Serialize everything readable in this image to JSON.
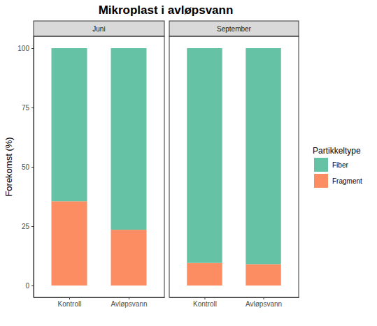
{
  "chart_data": {
    "type": "bar",
    "title": "Mikroplast i avløpsvann",
    "y_label": "Forekomst (%)",
    "legend_title": "Partikkeltype",
    "legend": "right",
    "stacked": true,
    "grid": false,
    "facets": [
      "Juni",
      "September"
    ],
    "categories": [
      "Kontroll",
      "Avløpsvann"
    ],
    "series": [
      {
        "name": "Fiber",
        "color": "#66c2a5",
        "values": [
          [
            64.5,
            76.5
          ],
          [
            90.5,
            91
          ]
        ]
      },
      {
        "name": "Fragment",
        "color": "#fc8d62",
        "values": [
          [
            35.5,
            23.5
          ],
          [
            9.5,
            9
          ]
        ]
      }
    ],
    "ylim": [
      -5,
      105
    ],
    "yticks": [
      0,
      25,
      50,
      75,
      100
    ]
  }
}
